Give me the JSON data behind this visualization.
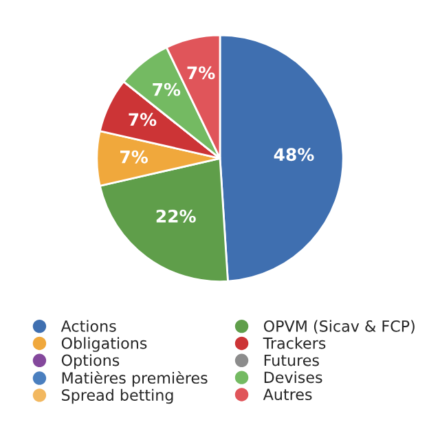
{
  "chart_data": {
    "type": "pie",
    "categories": [
      "Actions",
      "OPVM (Sicav & FCP)",
      "Obligations",
      "Trackers",
      "Options",
      "Futures",
      "Matières premières",
      "Devises",
      "Spread betting",
      "Autres"
    ],
    "values": [
      48,
      22,
      7,
      7,
      0,
      0,
      0,
      7,
      0,
      7
    ],
    "value_labels": [
      "48%",
      "22%",
      "7%",
      "7%",
      null,
      null,
      null,
      "7%",
      null,
      "7%"
    ],
    "colors": [
      "#3f6fb0",
      "#5f9e4a",
      "#f0a83c",
      "#cc3436",
      "#84489c",
      "#8c8c8c",
      "#4a7fbf",
      "#74ba62",
      "#f2b860",
      "#e0555a"
    ],
    "legend": "bottom"
  }
}
